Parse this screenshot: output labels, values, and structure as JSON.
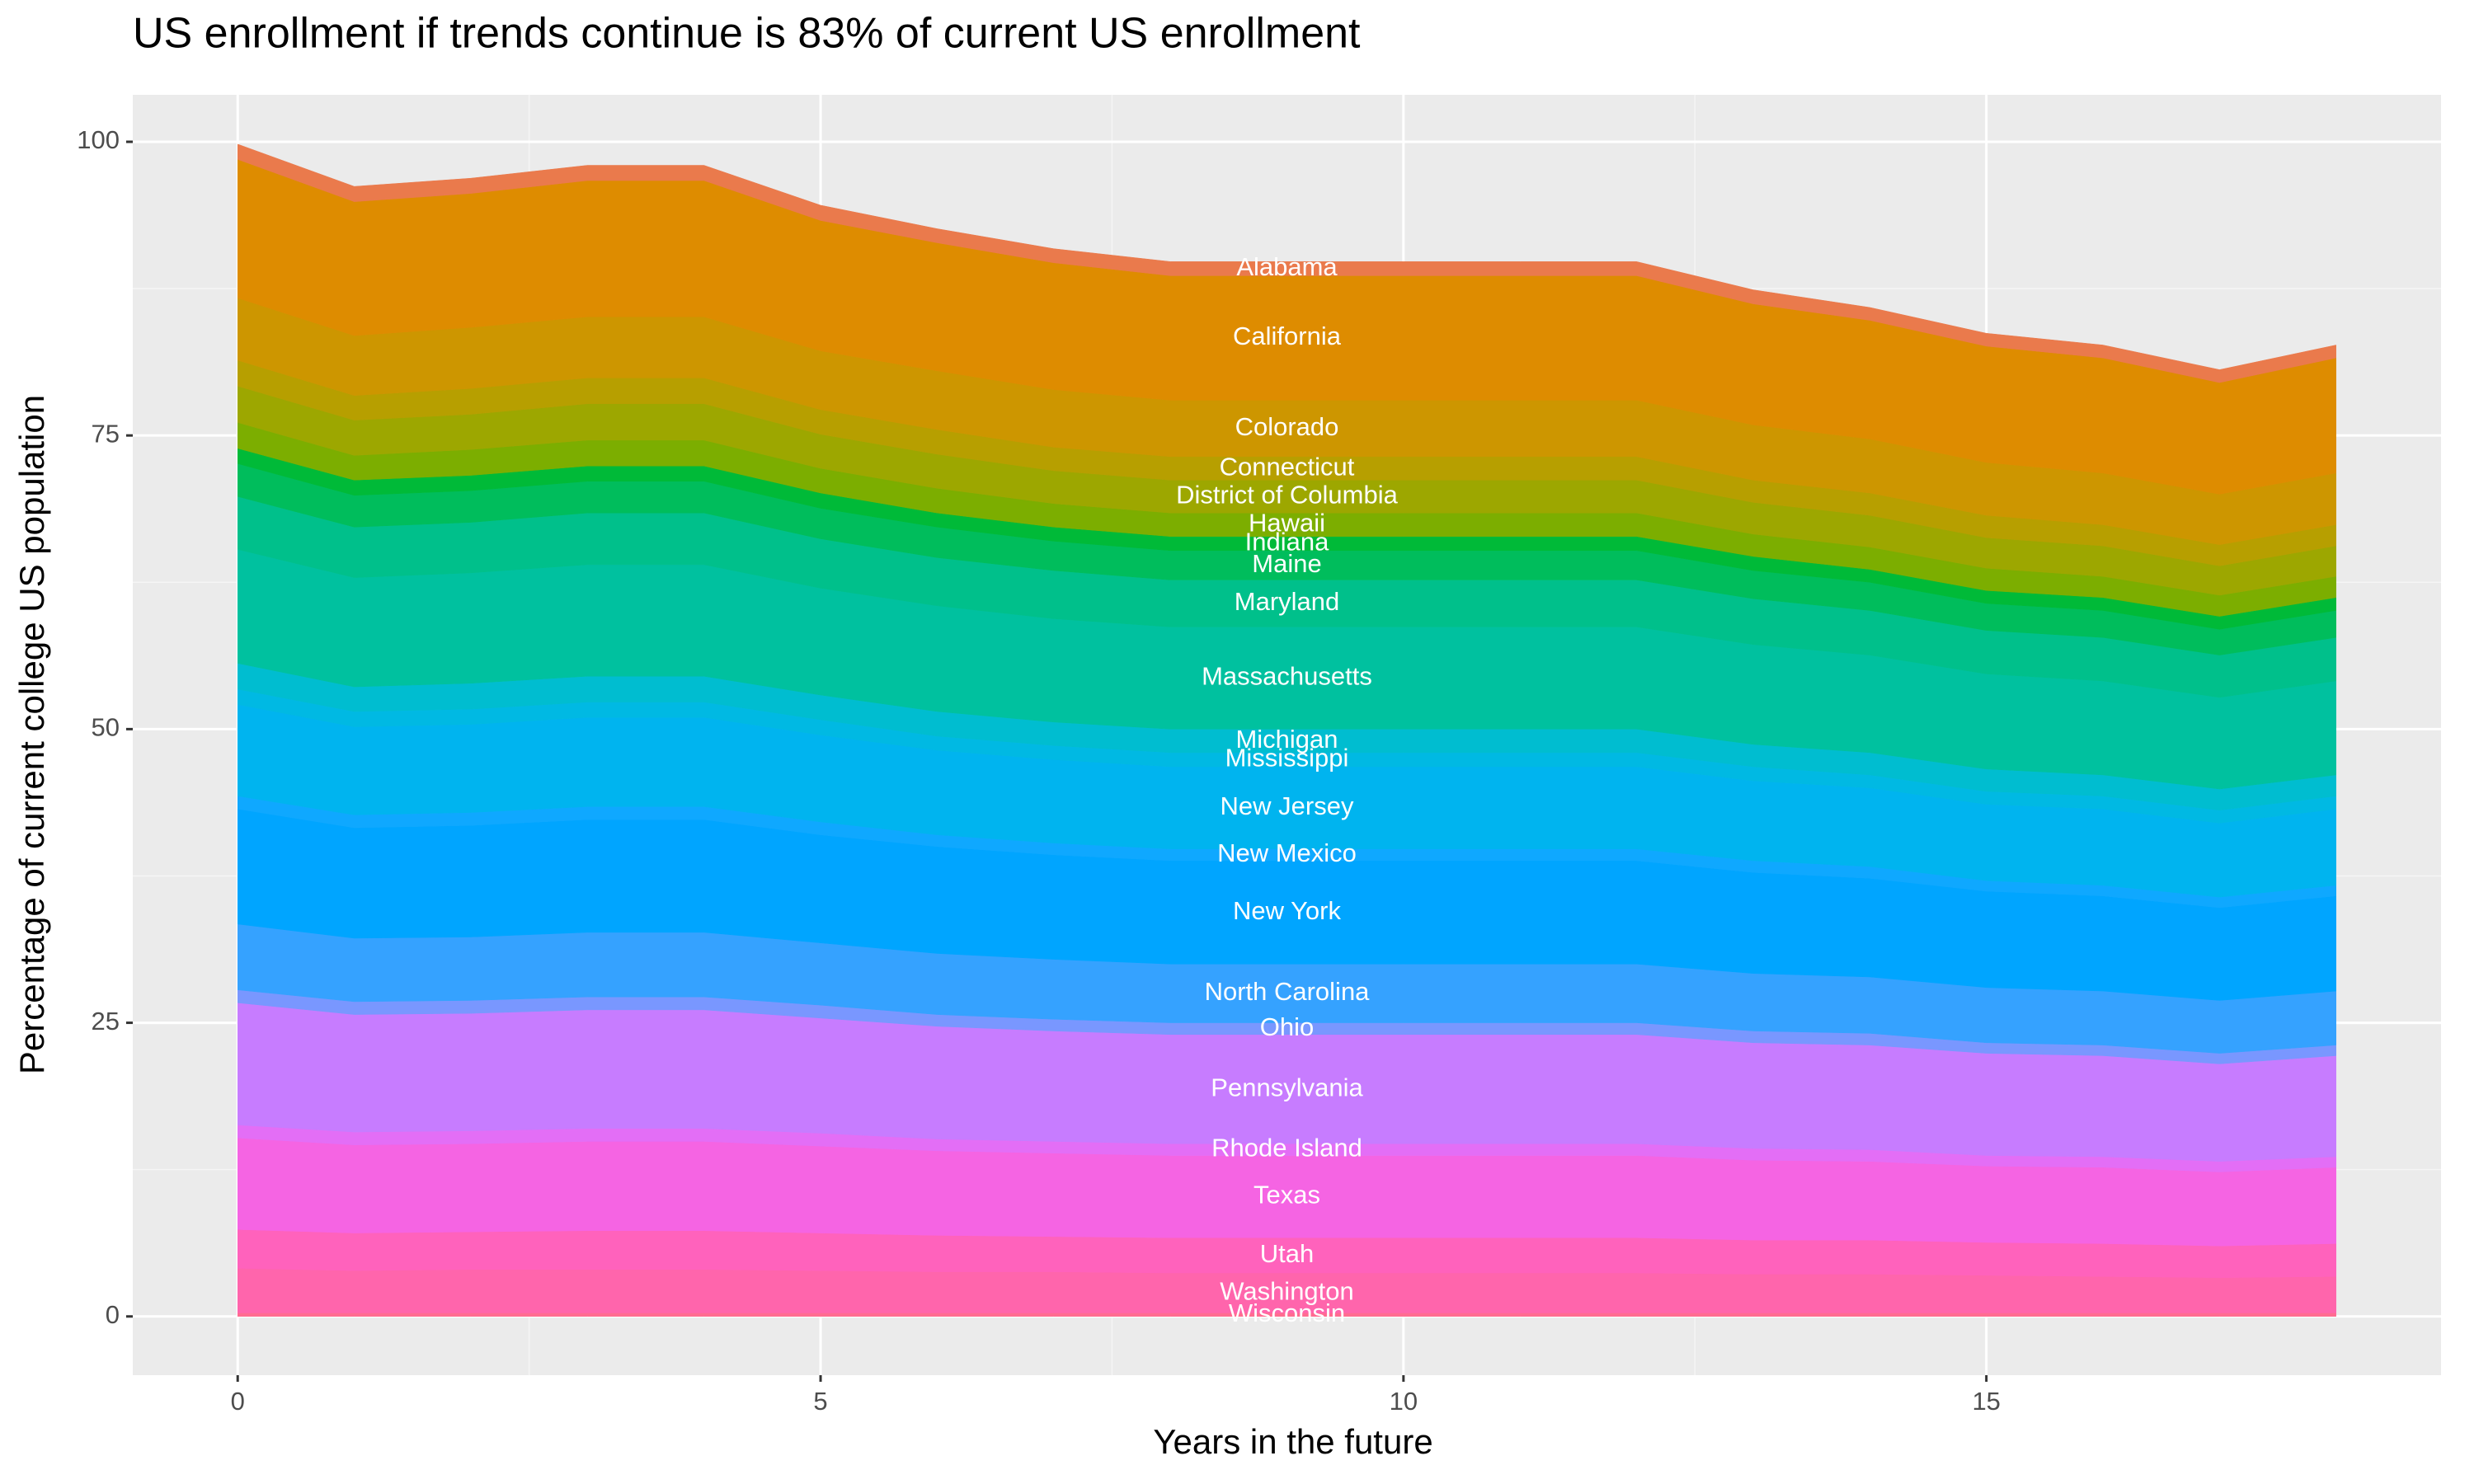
{
  "chart_data": {
    "type": "stacked_area",
    "title": "US enrollment if trends continue is 83% of current US enrollment",
    "x_label": "Years in the future",
    "y_label": "Percentage of current college US population",
    "x": [
      0,
      1,
      2,
      3,
      4,
      5,
      6,
      7,
      8,
      9,
      10,
      11,
      12,
      13,
      14,
      15,
      16,
      17,
      18
    ],
    "xlim": [
      -0.9,
      18.9
    ],
    "xticks": [
      0,
      5,
      10,
      15
    ],
    "ylim": [
      -5,
      104
    ],
    "yticks": [
      0,
      25,
      50,
      75,
      100
    ],
    "grid": true,
    "series": [
      {
        "name": "Wisconsin",
        "color": "#ff6c91",
        "values": [
          0.3,
          0.3,
          0.3,
          0.3,
          0.3,
          0.3,
          0.3,
          0.3,
          0.3,
          0.3,
          0.3,
          0.3,
          0.3,
          0.3,
          0.3,
          0.3,
          0.3,
          0.3,
          0.3
        ]
      },
      {
        "name": "Washington",
        "color": "#ff65ac",
        "values": [
          3.8,
          3.6,
          3.7,
          3.7,
          3.7,
          3.6,
          3.5,
          3.5,
          3.4,
          3.4,
          3.4,
          3.4,
          3.4,
          3.3,
          3.3,
          3.2,
          3.1,
          3.0,
          3.1
        ]
      },
      {
        "name": "Utah",
        "color": "#ff62bc",
        "values": [
          3.3,
          3.2,
          3.2,
          3.3,
          3.3,
          3.2,
          3.1,
          3.0,
          3.0,
          3.0,
          3.0,
          3.0,
          3.0,
          2.9,
          2.9,
          2.8,
          2.8,
          2.7,
          2.8
        ]
      },
      {
        "name": "Texas",
        "color": "#f564e3",
        "values": [
          7.8,
          7.5,
          7.5,
          7.6,
          7.6,
          7.4,
          7.2,
          7.1,
          7.0,
          7.0,
          7.0,
          7.0,
          7.0,
          6.8,
          6.7,
          6.5,
          6.5,
          6.3,
          6.5
        ]
      },
      {
        "name": "Rhode Island",
        "color": "#e36ef6",
        "values": [
          1.1,
          1.1,
          1.1,
          1.1,
          1.1,
          1.1,
          1.0,
          1.0,
          1.0,
          1.0,
          1.0,
          1.0,
          1.0,
          1.0,
          1.0,
          0.9,
          0.9,
          0.9,
          0.9
        ]
      },
      {
        "name": "Pennsylvania",
        "color": "#c77cff",
        "values": [
          10.4,
          10.0,
          10.0,
          10.1,
          10.1,
          9.8,
          9.6,
          9.4,
          9.3,
          9.3,
          9.3,
          9.3,
          9.3,
          9.0,
          8.9,
          8.7,
          8.6,
          8.3,
          8.6
        ]
      },
      {
        "name": "Ohio",
        "color": "#7997ff",
        "values": [
          1.1,
          1.1,
          1.1,
          1.1,
          1.1,
          1.1,
          1.0,
          1.0,
          1.0,
          1.0,
          1.0,
          1.0,
          1.0,
          1.0,
          1.0,
          0.9,
          0.9,
          0.9,
          0.9
        ]
      },
      {
        "name": "North Carolina",
        "color": "#35a2ff",
        "values": [
          5.6,
          5.4,
          5.4,
          5.5,
          5.5,
          5.3,
          5.2,
          5.1,
          5.0,
          5.0,
          5.0,
          5.0,
          5.0,
          4.9,
          4.8,
          4.7,
          4.6,
          4.5,
          4.6
        ]
      },
      {
        "name": "New York",
        "color": "#00a5ff",
        "values": [
          9.8,
          9.4,
          9.5,
          9.6,
          9.6,
          9.2,
          9.1,
          8.9,
          8.8,
          8.8,
          8.8,
          8.8,
          8.8,
          8.6,
          8.4,
          8.2,
          8.1,
          7.9,
          8.1
        ]
      },
      {
        "name": "New Mexico",
        "color": "#0fa8ff",
        "values": [
          1.1,
          1.1,
          1.1,
          1.1,
          1.1,
          1.1,
          1.0,
          1.0,
          1.0,
          1.0,
          1.0,
          1.0,
          1.0,
          1.0,
          1.0,
          0.9,
          0.9,
          0.9,
          0.9
        ]
      },
      {
        "name": "New Jersey",
        "color": "#00b4ef",
        "values": [
          7.8,
          7.5,
          7.5,
          7.6,
          7.6,
          7.4,
          7.2,
          7.1,
          7.0,
          7.0,
          7.0,
          7.0,
          7.0,
          6.8,
          6.7,
          6.5,
          6.5,
          6.3,
          6.5
        ]
      },
      {
        "name": "Mississippi",
        "color": "#00b9e3",
        "values": [
          1.3,
          1.3,
          1.3,
          1.3,
          1.3,
          1.3,
          1.2,
          1.2,
          1.2,
          1.2,
          1.2,
          1.2,
          1.2,
          1.2,
          1.1,
          1.1,
          1.1,
          1.1,
          1.1
        ]
      },
      {
        "name": "Michigan",
        "color": "#00bdd0",
        "values": [
          2.2,
          2.1,
          2.2,
          2.2,
          2.2,
          2.1,
          2.1,
          2.0,
          2.0,
          2.0,
          2.0,
          2.0,
          2.0,
          1.9,
          1.9,
          1.9,
          1.8,
          1.8,
          1.8
        ]
      },
      {
        "name": "Massachusetts",
        "color": "#00c19f",
        "values": [
          9.7,
          9.3,
          9.4,
          9.5,
          9.5,
          9.1,
          9.0,
          8.8,
          8.7,
          8.7,
          8.7,
          8.7,
          8.7,
          8.5,
          8.3,
          8.1,
          8.0,
          7.8,
          8.0
        ]
      },
      {
        "name": "Maryland",
        "color": "#00c08b",
        "values": [
          4.5,
          4.3,
          4.3,
          4.4,
          4.4,
          4.2,
          4.1,
          4.1,
          4.0,
          4.0,
          4.0,
          4.0,
          4.0,
          3.9,
          3.8,
          3.7,
          3.7,
          3.6,
          3.7
        ]
      },
      {
        "name": "Maine",
        "color": "#00bd5c",
        "values": [
          2.8,
          2.7,
          2.7,
          2.7,
          2.7,
          2.6,
          2.6,
          2.5,
          2.5,
          2.5,
          2.5,
          2.5,
          2.5,
          2.4,
          2.4,
          2.3,
          2.3,
          2.2,
          2.3
        ]
      },
      {
        "name": "Indiana",
        "color": "#00ba38",
        "values": [
          1.3,
          1.3,
          1.3,
          1.3,
          1.3,
          1.3,
          1.2,
          1.2,
          1.2,
          1.2,
          1.2,
          1.2,
          1.2,
          1.2,
          1.1,
          1.1,
          1.1,
          1.1,
          1.1
        ]
      },
      {
        "name": "Hawaii",
        "color": "#7cae00",
        "values": [
          2.2,
          2.1,
          2.2,
          2.2,
          2.2,
          2.1,
          2.1,
          2.0,
          2.0,
          2.0,
          2.0,
          2.0,
          2.0,
          1.9,
          1.9,
          1.9,
          1.8,
          1.8,
          1.8
        ]
      },
      {
        "name": "District of Columbia",
        "color": "#9da700",
        "values": [
          3.1,
          3.0,
          3.0,
          3.1,
          3.1,
          2.9,
          2.9,
          2.8,
          2.8,
          2.8,
          2.8,
          2.8,
          2.8,
          2.7,
          2.7,
          2.6,
          2.6,
          2.5,
          2.6
        ]
      },
      {
        "name": "Connecticut",
        "color": "#b79f00",
        "values": [
          2.2,
          2.1,
          2.2,
          2.2,
          2.2,
          2.1,
          2.1,
          2.0,
          2.0,
          2.0,
          2.0,
          2.0,
          2.0,
          1.9,
          1.9,
          1.9,
          1.8,
          1.8,
          1.8
        ]
      },
      {
        "name": "Colorado",
        "color": "#cd9600",
        "values": [
          5.3,
          5.1,
          5.2,
          5.2,
          5.2,
          5.0,
          5.0,
          4.9,
          4.8,
          4.8,
          4.8,
          4.8,
          4.8,
          4.7,
          4.6,
          4.5,
          4.4,
          4.3,
          4.4
        ]
      },
      {
        "name": "California",
        "color": "#de8c00",
        "values": [
          11.8,
          11.4,
          11.4,
          11.6,
          11.6,
          11.1,
          10.9,
          10.8,
          10.6,
          10.6,
          10.6,
          10.6,
          10.6,
          10.3,
          10.1,
          9.9,
          9.8,
          9.5,
          9.8
        ]
      },
      {
        "name": "Alabama",
        "color": "#ea7a4c",
        "values": [
          1.3,
          1.3,
          1.3,
          1.3,
          1.3,
          1.3,
          1.2,
          1.2,
          1.2,
          1.2,
          1.2,
          1.2,
          1.2,
          1.2,
          1.1,
          1.1,
          1.1,
          1.1,
          1.1
        ]
      }
    ]
  }
}
